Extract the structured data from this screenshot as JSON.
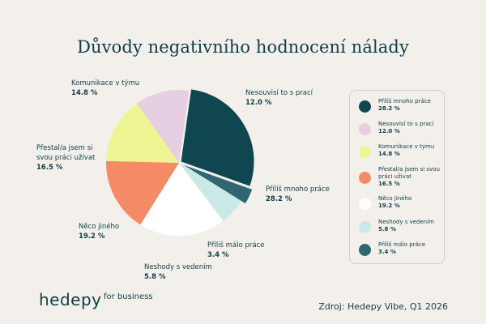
{
  "chart_data": {
    "type": "pie",
    "title": "Důvody negativního hodnocení nálady",
    "slices": [
      {
        "label": "Příliš mnoho práce",
        "value": 28.2,
        "value_label": "28.2 %",
        "color": "#0f4650"
      },
      {
        "label": "Příliš málo práce",
        "value": 3.4,
        "value_label": "3.4 %",
        "color": "#2e6770"
      },
      {
        "label": "Neshody s vedením",
        "value": 5.8,
        "value_label": "5.8 %",
        "color": "#c9e8e6"
      },
      {
        "label": "Něco jiného",
        "value": 19.2,
        "value_label": "19.2 %",
        "color": "#ffffff"
      },
      {
        "label": "Přestal/a jsem si svou práci užívat",
        "value": 16.5,
        "value_label": "16.5 %",
        "color": "#f58a66"
      },
      {
        "label": "Komunikace v týmu",
        "value": 14.8,
        "value_label": "14.8 %",
        "color": "#eef592"
      },
      {
        "label": "Nesouvisí to s prací",
        "value": 12.0,
        "value_label": "12.0 %",
        "color": "#e6cfe3"
      }
    ],
    "legend": {
      "placement": "right",
      "items": [
        {
          "label": "Příliš mnoho práce",
          "value_label": "28.2 %",
          "color": "#0f4650"
        },
        {
          "label": "Nesouvisí to s prací",
          "value_label": "12.0 %",
          "color": "#e6cfe3"
        },
        {
          "label": "Komunikace v týmu",
          "value_label": "14.8 %",
          "color": "#eef592"
        },
        {
          "label": "Přestal/a jsem si svou práci užívat",
          "value_label": "16.5 %",
          "color": "#f58a66"
        },
        {
          "label": "Něco jiného",
          "value_label": "19.2 %",
          "color": "#ffffff"
        },
        {
          "label": "Neshody s vedením",
          "value_label": "5.8 %",
          "color": "#c9e8e6"
        },
        {
          "label": "Příliš málo práce",
          "value_label": "3.4 %",
          "color": "#2e6770"
        }
      ]
    }
  },
  "branding": {
    "logo_word": "hedepy",
    "logo_sub": "for business"
  },
  "source": "Zdroj: Hedepy Vibe, Q1 2026",
  "colors": {
    "background": "#f3f0ec",
    "text": "#0f3e48"
  }
}
